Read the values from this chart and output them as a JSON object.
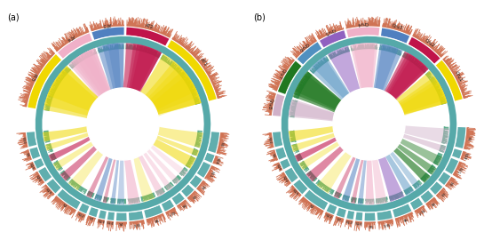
{
  "fig_width": 5.54,
  "fig_height": 2.79,
  "background": "#ffffff",
  "panel_a": {
    "label": "(a)",
    "at_segments": [
      {
        "name": "AT1",
        "size": 65,
        "color": "#f0d800"
      },
      {
        "name": "AT2",
        "size": 38,
        "color": "#c0144a"
      },
      {
        "name": "AT3",
        "size": 28,
        "color": "#5080c0"
      },
      {
        "name": "AT4",
        "size": 32,
        "color": "#f0b0c8"
      },
      {
        "name": "AT5",
        "size": 52,
        "color": "#f0d800"
      }
    ],
    "s_segments": [
      {
        "name": "S10",
        "size": 18
      },
      {
        "name": "S5",
        "size": 13
      },
      {
        "name": "S16",
        "size": 10
      },
      {
        "name": "S20",
        "size": 16
      },
      {
        "name": "S19",
        "size": 16
      },
      {
        "name": "S2",
        "size": 30
      },
      {
        "name": "S12",
        "size": 10
      },
      {
        "name": "S7",
        "size": 10
      },
      {
        "name": "S13",
        "size": 8
      },
      {
        "name": "S14",
        "size": 8
      },
      {
        "name": "S4",
        "size": 13
      },
      {
        "name": "S15",
        "size": 18
      },
      {
        "name": "S8",
        "size": 22
      },
      {
        "name": "S17",
        "size": 13
      },
      {
        "name": "S6",
        "size": 13
      },
      {
        "name": "S3",
        "size": 13
      },
      {
        "name": "S9",
        "size": 13
      },
      {
        "name": "S11",
        "size": 18
      },
      {
        "name": "S18",
        "size": 10
      },
      {
        "name": "S1",
        "size": 26
      }
    ],
    "ribbons": [
      {
        "from_seg": 0,
        "from_f1": 0.0,
        "from_f2": 1.0,
        "to_seg": 0,
        "to_f1": 0.1,
        "to_f2": 0.9,
        "color": "#f0d800",
        "alpha": 0.55
      },
      {
        "from_seg": 0,
        "from_f1": 0.0,
        "from_f2": 0.8,
        "to_seg": 1,
        "to_f1": 0.0,
        "to_f2": 0.7,
        "color": "#f0d800",
        "alpha": 0.45
      },
      {
        "from_seg": 0,
        "from_f1": 0.1,
        "from_f2": 0.6,
        "to_seg": 3,
        "to_f1": 0.1,
        "to_f2": 0.8,
        "color": "#f0d800",
        "alpha": 0.35
      },
      {
        "from_seg": 0,
        "from_f1": 0.2,
        "from_f2": 0.7,
        "to_seg": 5,
        "to_f1": 0.0,
        "to_f2": 0.6,
        "color": "#f0d800",
        "alpha": 0.3
      },
      {
        "from_seg": 0,
        "from_f1": 0.0,
        "from_f2": 0.5,
        "to_seg": 12,
        "to_f1": 0.1,
        "to_f2": 0.9,
        "color": "#f0d800",
        "alpha": 0.28
      },
      {
        "from_seg": 1,
        "from_f1": 0.0,
        "from_f2": 1.0,
        "to_seg": 2,
        "to_f1": 0.0,
        "to_f2": 1.0,
        "color": "#c0144a",
        "alpha": 0.6
      },
      {
        "from_seg": 1,
        "from_f1": 0.0,
        "from_f2": 0.8,
        "to_seg": 4,
        "to_f1": 0.1,
        "to_f2": 0.9,
        "color": "#c0144a",
        "alpha": 0.5
      },
      {
        "from_seg": 1,
        "from_f1": 0.1,
        "from_f2": 0.7,
        "to_seg": 6,
        "to_f1": 0.0,
        "to_f2": 0.8,
        "color": "#c0144a",
        "alpha": 0.4
      },
      {
        "from_seg": 1,
        "from_f1": 0.0,
        "from_f2": 0.6,
        "to_seg": 8,
        "to_f1": 0.0,
        "to_f2": 0.7,
        "color": "#c0144a",
        "alpha": 0.35
      },
      {
        "from_seg": 2,
        "from_f1": 0.0,
        "from_f2": 1.0,
        "to_seg": 7,
        "to_f1": 0.0,
        "to_f2": 1.0,
        "color": "#5080c0",
        "alpha": 0.55
      },
      {
        "from_seg": 2,
        "from_f1": 0.2,
        "from_f2": 0.8,
        "to_seg": 9,
        "to_f1": 0.1,
        "to_f2": 0.9,
        "color": "#5080c0",
        "alpha": 0.45
      },
      {
        "from_seg": 2,
        "from_f1": 0.0,
        "from_f2": 0.6,
        "to_seg": 10,
        "to_f1": 0.0,
        "to_f2": 0.8,
        "color": "#5080c0",
        "alpha": 0.35
      },
      {
        "from_seg": 3,
        "from_f1": 0.0,
        "from_f2": 1.0,
        "to_seg": 11,
        "to_f1": 0.0,
        "to_f2": 1.0,
        "color": "#f0b0c8",
        "alpha": 0.6
      },
      {
        "from_seg": 3,
        "from_f1": 0.1,
        "from_f2": 0.9,
        "to_seg": 13,
        "to_f1": 0.0,
        "to_f2": 0.9,
        "color": "#f0b0c8",
        "alpha": 0.5
      },
      {
        "from_seg": 3,
        "from_f1": 0.0,
        "from_f2": 0.7,
        "to_seg": 14,
        "to_f1": 0.1,
        "to_f2": 0.8,
        "color": "#f0b0c8",
        "alpha": 0.4
      },
      {
        "from_seg": 3,
        "from_f1": 0.2,
        "from_f2": 0.8,
        "to_seg": 15,
        "to_f1": 0.0,
        "to_f2": 0.7,
        "color": "#f0b0c8",
        "alpha": 0.35
      },
      {
        "from_seg": 3,
        "from_f1": 0.0,
        "from_f2": 0.5,
        "to_seg": 16,
        "to_f1": 0.0,
        "to_f2": 0.8,
        "color": "#f0b0c8",
        "alpha": 0.3
      },
      {
        "from_seg": 4,
        "from_f1": 0.0,
        "from_f2": 1.0,
        "to_seg": 17,
        "to_f1": 0.0,
        "to_f2": 1.0,
        "color": "#f0d800",
        "alpha": 0.55
      },
      {
        "from_seg": 4,
        "from_f1": 0.1,
        "from_f2": 0.9,
        "to_seg": 18,
        "to_f1": 0.0,
        "to_f2": 0.9,
        "color": "#f0d800",
        "alpha": 0.45
      },
      {
        "from_seg": 4,
        "from_f1": 0.0,
        "from_f2": 0.7,
        "to_seg": 19,
        "to_f1": 0.0,
        "to_f2": 0.9,
        "color": "#f0d800",
        "alpha": 0.4
      }
    ]
  },
  "panel_b": {
    "label": "(b)",
    "cru_segments": [
      {
        "name": "Cru1",
        "size": 40,
        "color": "#f0d800"
      },
      {
        "name": "Cru2",
        "size": 32,
        "color": "#c0144a"
      },
      {
        "name": "Cru3",
        "size": 26,
        "color": "#5080c0"
      },
      {
        "name": "Cru4",
        "size": 30,
        "color": "#f0b0c8"
      },
      {
        "name": "Cru5",
        "size": 24,
        "color": "#9060c0"
      },
      {
        "name": "Cru6",
        "size": 24,
        "color": "#5090c0"
      },
      {
        "name": "Cru7",
        "size": 32,
        "color": "#207820"
      },
      {
        "name": "Cru8",
        "size": 20,
        "color": "#d0b0c8"
      }
    ],
    "s_segments": [
      {
        "name": "S10",
        "size": 18
      },
      {
        "name": "S5",
        "size": 13
      },
      {
        "name": "S16",
        "size": 10
      },
      {
        "name": "S20",
        "size": 16
      },
      {
        "name": "S19",
        "size": 16
      },
      {
        "name": "S2",
        "size": 30
      },
      {
        "name": "S12",
        "size": 10
      },
      {
        "name": "S7",
        "size": 10
      },
      {
        "name": "S13",
        "size": 8
      },
      {
        "name": "S14",
        "size": 8
      },
      {
        "name": "S4",
        "size": 13
      },
      {
        "name": "S15",
        "size": 18
      },
      {
        "name": "S8",
        "size": 22
      },
      {
        "name": "S17",
        "size": 13
      },
      {
        "name": "S6",
        "size": 13
      },
      {
        "name": "S3",
        "size": 13
      },
      {
        "name": "S9",
        "size": 13
      },
      {
        "name": "S11",
        "size": 18
      },
      {
        "name": "S18",
        "size": 10
      },
      {
        "name": "S1",
        "size": 26
      }
    ],
    "ribbons": [
      {
        "from_seg": 0,
        "from_f1": 0.0,
        "from_f2": 1.0,
        "to_seg": 0,
        "to_f1": 0.0,
        "to_f2": 0.9,
        "color": "#f0d800",
        "alpha": 0.55
      },
      {
        "from_seg": 0,
        "from_f1": 0.0,
        "from_f2": 0.8,
        "to_seg": 1,
        "to_f1": 0.0,
        "to_f2": 0.8,
        "color": "#f0d800",
        "alpha": 0.45
      },
      {
        "from_seg": 0,
        "from_f1": 0.1,
        "from_f2": 0.7,
        "to_seg": 3,
        "to_f1": 0.0,
        "to_f2": 0.7,
        "color": "#f0d800",
        "alpha": 0.35
      },
      {
        "from_seg": 0,
        "from_f1": 0.0,
        "from_f2": 0.6,
        "to_seg": 5,
        "to_f1": 0.1,
        "to_f2": 0.8,
        "color": "#f0d800",
        "alpha": 0.3
      },
      {
        "from_seg": 1,
        "from_f1": 0.0,
        "from_f2": 1.0,
        "to_seg": 2,
        "to_f1": 0.0,
        "to_f2": 1.0,
        "color": "#c0144a",
        "alpha": 0.6
      },
      {
        "from_seg": 1,
        "from_f1": 0.0,
        "from_f2": 0.9,
        "to_seg": 4,
        "to_f1": 0.0,
        "to_f2": 0.9,
        "color": "#c0144a",
        "alpha": 0.5
      },
      {
        "from_seg": 1,
        "from_f1": 0.1,
        "from_f2": 0.8,
        "to_seg": 6,
        "to_f1": 0.0,
        "to_f2": 0.8,
        "color": "#c0144a",
        "alpha": 0.4
      },
      {
        "from_seg": 1,
        "from_f1": 0.0,
        "from_f2": 0.7,
        "to_seg": 8,
        "to_f1": 0.1,
        "to_f2": 0.9,
        "color": "#c0144a",
        "alpha": 0.35
      },
      {
        "from_seg": 2,
        "from_f1": 0.0,
        "from_f2": 1.0,
        "to_seg": 7,
        "to_f1": 0.0,
        "to_f2": 1.0,
        "color": "#5080c0",
        "alpha": 0.55
      },
      {
        "from_seg": 2,
        "from_f1": 0.2,
        "from_f2": 0.9,
        "to_seg": 9,
        "to_f1": 0.0,
        "to_f2": 0.9,
        "color": "#5080c0",
        "alpha": 0.45
      },
      {
        "from_seg": 3,
        "from_f1": 0.0,
        "from_f2": 1.0,
        "to_seg": 10,
        "to_f1": 0.0,
        "to_f2": 1.0,
        "color": "#f0b0c8",
        "alpha": 0.6
      },
      {
        "from_seg": 3,
        "from_f1": 0.1,
        "from_f2": 0.9,
        "to_seg": 11,
        "to_f1": 0.0,
        "to_f2": 0.9,
        "color": "#f0b0c8",
        "alpha": 0.45
      },
      {
        "from_seg": 4,
        "from_f1": 0.0,
        "from_f2": 1.0,
        "to_seg": 12,
        "to_f1": 0.0,
        "to_f2": 1.0,
        "color": "#9060c0",
        "alpha": 0.55
      },
      {
        "from_seg": 5,
        "from_f1": 0.0,
        "from_f2": 1.0,
        "to_seg": 13,
        "to_f1": 0.0,
        "to_f2": 1.0,
        "color": "#5090c0",
        "alpha": 0.5
      },
      {
        "from_seg": 5,
        "from_f1": 0.1,
        "from_f2": 0.8,
        "to_seg": 14,
        "to_f1": 0.0,
        "to_f2": 0.8,
        "color": "#5090c0",
        "alpha": 0.4
      },
      {
        "from_seg": 6,
        "from_f1": 0.0,
        "from_f2": 1.0,
        "to_seg": 15,
        "to_f1": 0.0,
        "to_f2": 1.0,
        "color": "#207820",
        "alpha": 0.65
      },
      {
        "from_seg": 6,
        "from_f1": 0.0,
        "from_f2": 0.9,
        "to_seg": 16,
        "to_f1": 0.0,
        "to_f2": 0.9,
        "color": "#207820",
        "alpha": 0.55
      },
      {
        "from_seg": 6,
        "from_f1": 0.1,
        "from_f2": 0.8,
        "to_seg": 17,
        "to_f1": 0.0,
        "to_f2": 0.8,
        "color": "#207820",
        "alpha": 0.45
      },
      {
        "from_seg": 7,
        "from_f1": 0.0,
        "from_f2": 1.0,
        "to_seg": 18,
        "to_f1": 0.0,
        "to_f2": 1.0,
        "color": "#d0b0c8",
        "alpha": 0.55
      },
      {
        "from_seg": 7,
        "from_f1": 0.1,
        "from_f2": 0.9,
        "to_seg": 19,
        "to_f1": 0.0,
        "to_f2": 0.9,
        "color": "#d0b0c8",
        "alpha": 0.45
      }
    ]
  },
  "colors": {
    "outer_bar": "#cc6644",
    "inner_bar": "#55aa88",
    "s_ring": "#44a0a0",
    "white": "#ffffff"
  }
}
